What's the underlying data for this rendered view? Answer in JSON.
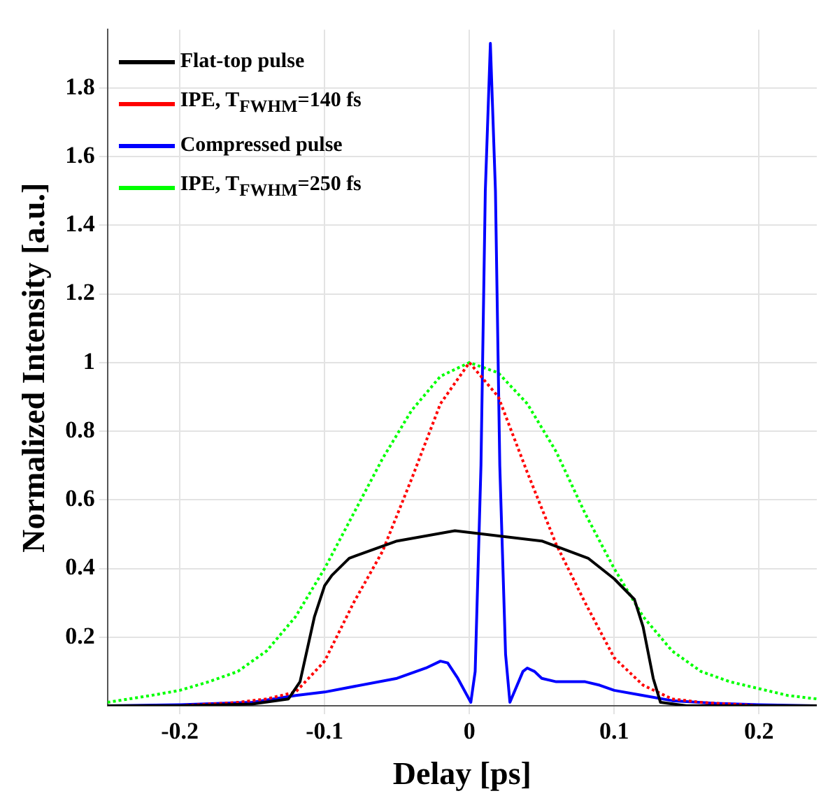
{
  "chart_data": {
    "type": "line",
    "xlabel": "Delay [ps]",
    "ylabel": "Normalized Intensity [a.u.]",
    "xlim": [
      -0.25,
      0.24
    ],
    "ylim": [
      0,
      1.97
    ],
    "xticks": [
      -0.2,
      -0.1,
      0,
      0.1,
      0.2
    ],
    "yticks": [
      0.2,
      0.4,
      0.6,
      0.8,
      1,
      1.2,
      1.4,
      1.6,
      1.8
    ],
    "grid": true,
    "legend": "top left",
    "marker": "none",
    "series": [
      {
        "name": "Flat-top pulse",
        "color": "#000000",
        "line_style": "solid",
        "x": [
          -0.25,
          -0.2,
          -0.15,
          -0.125,
          -0.117,
          -0.107,
          -0.1,
          -0.095,
          -0.083,
          -0.05,
          -0.01,
          0.05,
          0.082,
          0.1,
          0.114,
          0.12,
          0.127,
          0.132,
          0.15,
          0.2,
          0.24
        ],
        "values": [
          0,
          0,
          0.005,
          0.02,
          0.07,
          0.26,
          0.35,
          0.38,
          0.43,
          0.48,
          0.51,
          0.48,
          0.43,
          0.37,
          0.31,
          0.23,
          0.08,
          0.01,
          0,
          0,
          0
        ]
      },
      {
        "name": "IPE, T$_{FWHM}$=140 fs",
        "color": "#ff0000",
        "line_style": "dotted",
        "x": [
          -0.25,
          -0.2,
          -0.16,
          -0.14,
          -0.12,
          -0.1,
          -0.08,
          -0.06,
          -0.04,
          -0.02,
          0,
          0.02,
          0.04,
          0.06,
          0.08,
          0.1,
          0.12,
          0.14,
          0.16,
          0.2,
          0.24
        ],
        "values": [
          0,
          0,
          0.01,
          0.02,
          0.04,
          0.13,
          0.3,
          0.45,
          0.66,
          0.88,
          1,
          0.9,
          0.68,
          0.47,
          0.3,
          0.14,
          0.06,
          0.02,
          0.01,
          0,
          0
        ]
      },
      {
        "name": "Compressed pulse",
        "color": "#0000ff",
        "line_style": "solid",
        "x": [
          -0.25,
          -0.2,
          -0.15,
          -0.12,
          -0.1,
          -0.05,
          -0.03,
          -0.02,
          -0.015,
          -0.008,
          0.001,
          0.004,
          0.008,
          0.011,
          0.0145,
          0.018,
          0.021,
          0.025,
          0.028,
          0.037,
          0.04,
          0.045,
          0.05,
          0.06,
          0.07,
          0.08,
          0.09,
          0.1,
          0.12,
          0.14,
          0.17,
          0.2,
          0.24
        ],
        "values": [
          0,
          0.003,
          0.01,
          0.03,
          0.04,
          0.08,
          0.11,
          0.13,
          0.125,
          0.08,
          0.01,
          0.1,
          0.7,
          1.5,
          1.93,
          1.5,
          0.7,
          0.15,
          0.01,
          0.1,
          0.11,
          0.1,
          0.08,
          0.07,
          0.07,
          0.07,
          0.06,
          0.045,
          0.03,
          0.015,
          0.007,
          0.003,
          0
        ]
      },
      {
        "name": "IPE, T$_{FWHM}$=250 fs",
        "color": "#00ff00",
        "line_style": "dotted",
        "x": [
          -0.25,
          -0.22,
          -0.2,
          -0.18,
          -0.16,
          -0.14,
          -0.12,
          -0.1,
          -0.08,
          -0.06,
          -0.04,
          -0.02,
          0,
          0.02,
          0.04,
          0.06,
          0.08,
          0.1,
          0.12,
          0.14,
          0.16,
          0.18,
          0.2,
          0.22,
          0.24
        ],
        "values": [
          0.01,
          0.03,
          0.045,
          0.07,
          0.1,
          0.16,
          0.26,
          0.4,
          0.56,
          0.72,
          0.86,
          0.96,
          1,
          0.97,
          0.88,
          0.74,
          0.56,
          0.4,
          0.26,
          0.16,
          0.1,
          0.07,
          0.05,
          0.03,
          0.02
        ]
      }
    ]
  }
}
